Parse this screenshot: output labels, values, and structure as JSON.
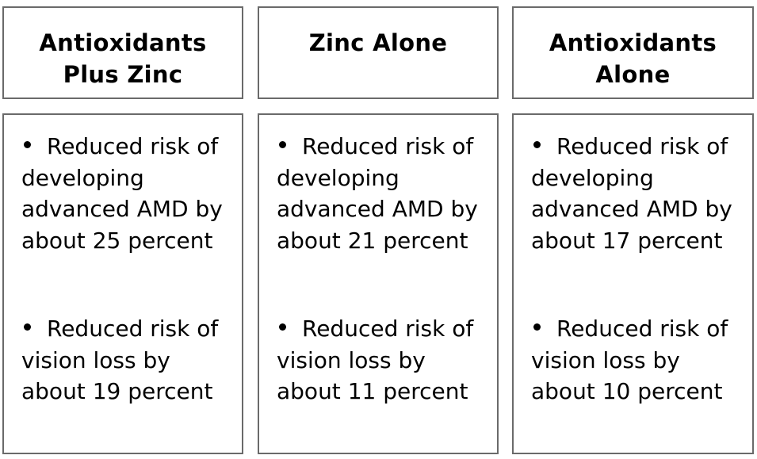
{
  "columns": [
    {
      "title_line1": "Antioxidants",
      "title_line2": "Plus Zinc",
      "bullets": [
        "Reduced risk of developing advanced AMD by about 25 percent",
        "Reduced risk of vision loss by about 19 percent"
      ]
    },
    {
      "title_line1": "Zinc Alone",
      "title_line2": "",
      "bullets": [
        "Reduced risk of developing advanced AMD by about 21 percent",
        "Reduced risk of vision loss by about 11 percent"
      ]
    },
    {
      "title_line1": "Antioxidants",
      "title_line2": "Alone",
      "bullets": [
        "Reduced risk of developing advanced AMD by about 17 percent",
        "Reduced risk of vision loss by about 10 percent"
      ]
    }
  ],
  "colors": {
    "border": "#6a6a6a",
    "text": "#000000",
    "background": "#ffffff"
  }
}
